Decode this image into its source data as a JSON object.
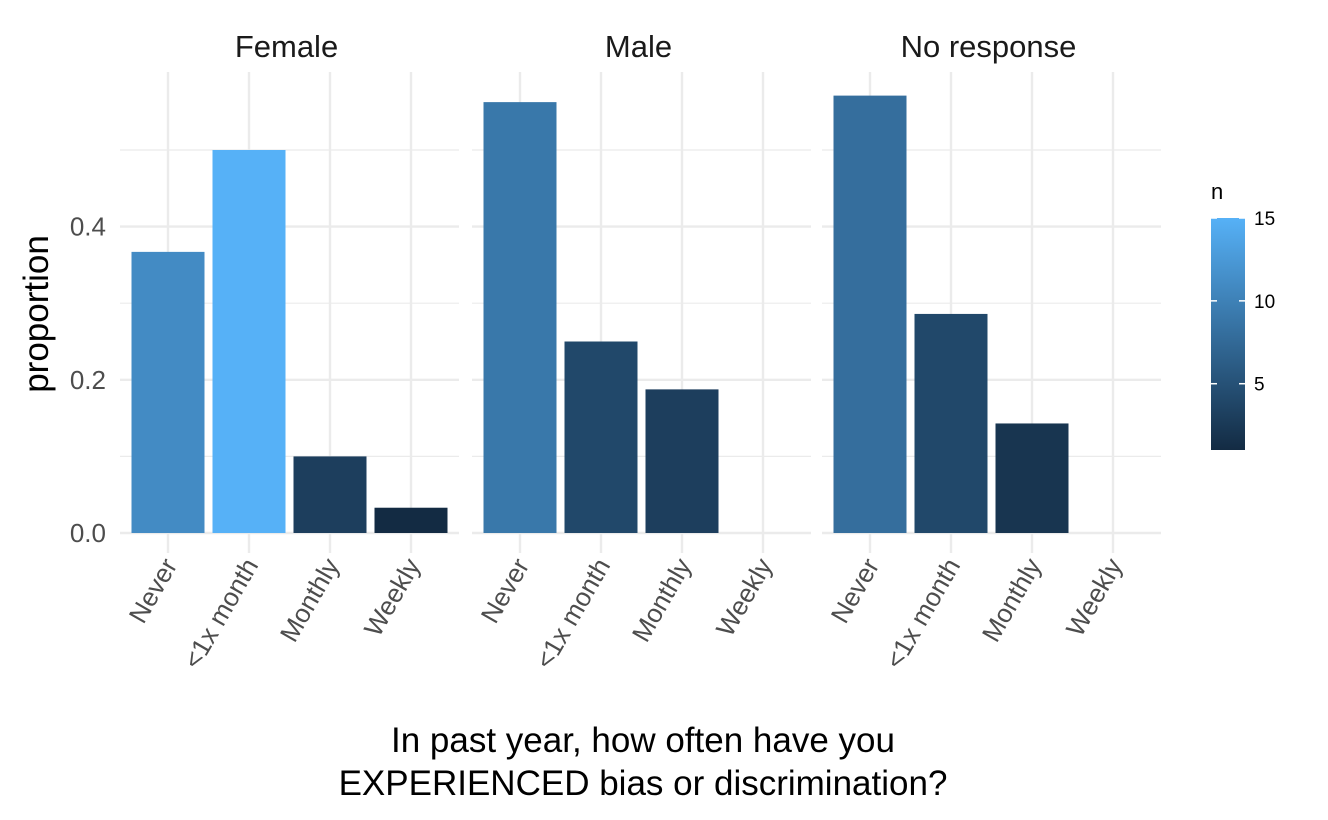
{
  "chart_data": {
    "type": "bar",
    "facets": [
      "Female",
      "Male",
      "No response"
    ],
    "categories": [
      "Never",
      "<1x month",
      "Monthly",
      "Weekly"
    ],
    "series": [
      {
        "facet": "Female",
        "values": [
          0.367,
          0.5,
          0.1,
          0.033
        ],
        "n": [
          11,
          15,
          3,
          1
        ]
      },
      {
        "facet": "Male",
        "values": [
          0.5625,
          0.25,
          0.1875,
          0
        ],
        "n": [
          9,
          4,
          3,
          0
        ]
      },
      {
        "facet": "No response",
        "values": [
          0.571,
          0.286,
          0.143,
          0
        ],
        "n": [
          8,
          4,
          2,
          0
        ]
      }
    ],
    "ylabel": "proportion",
    "xlabel_lines": [
      "In past year, how often have you",
      "EXPERIENCED bias or discrimination?"
    ],
    "ylim": [
      0,
      0.6
    ],
    "y_ticks": [
      0.0,
      0.2,
      0.4
    ],
    "y_tick_labels": [
      "0.0",
      "0.2",
      "0.4"
    ],
    "grid": true,
    "legend": {
      "title": "n",
      "placement": "right",
      "range": [
        1,
        15
      ],
      "ticks": [
        5,
        10,
        15
      ],
      "tick_labels": [
        "5",
        "10",
        "15"
      ],
      "color_low": "#132B43",
      "color_high": "#56B1F7"
    }
  }
}
